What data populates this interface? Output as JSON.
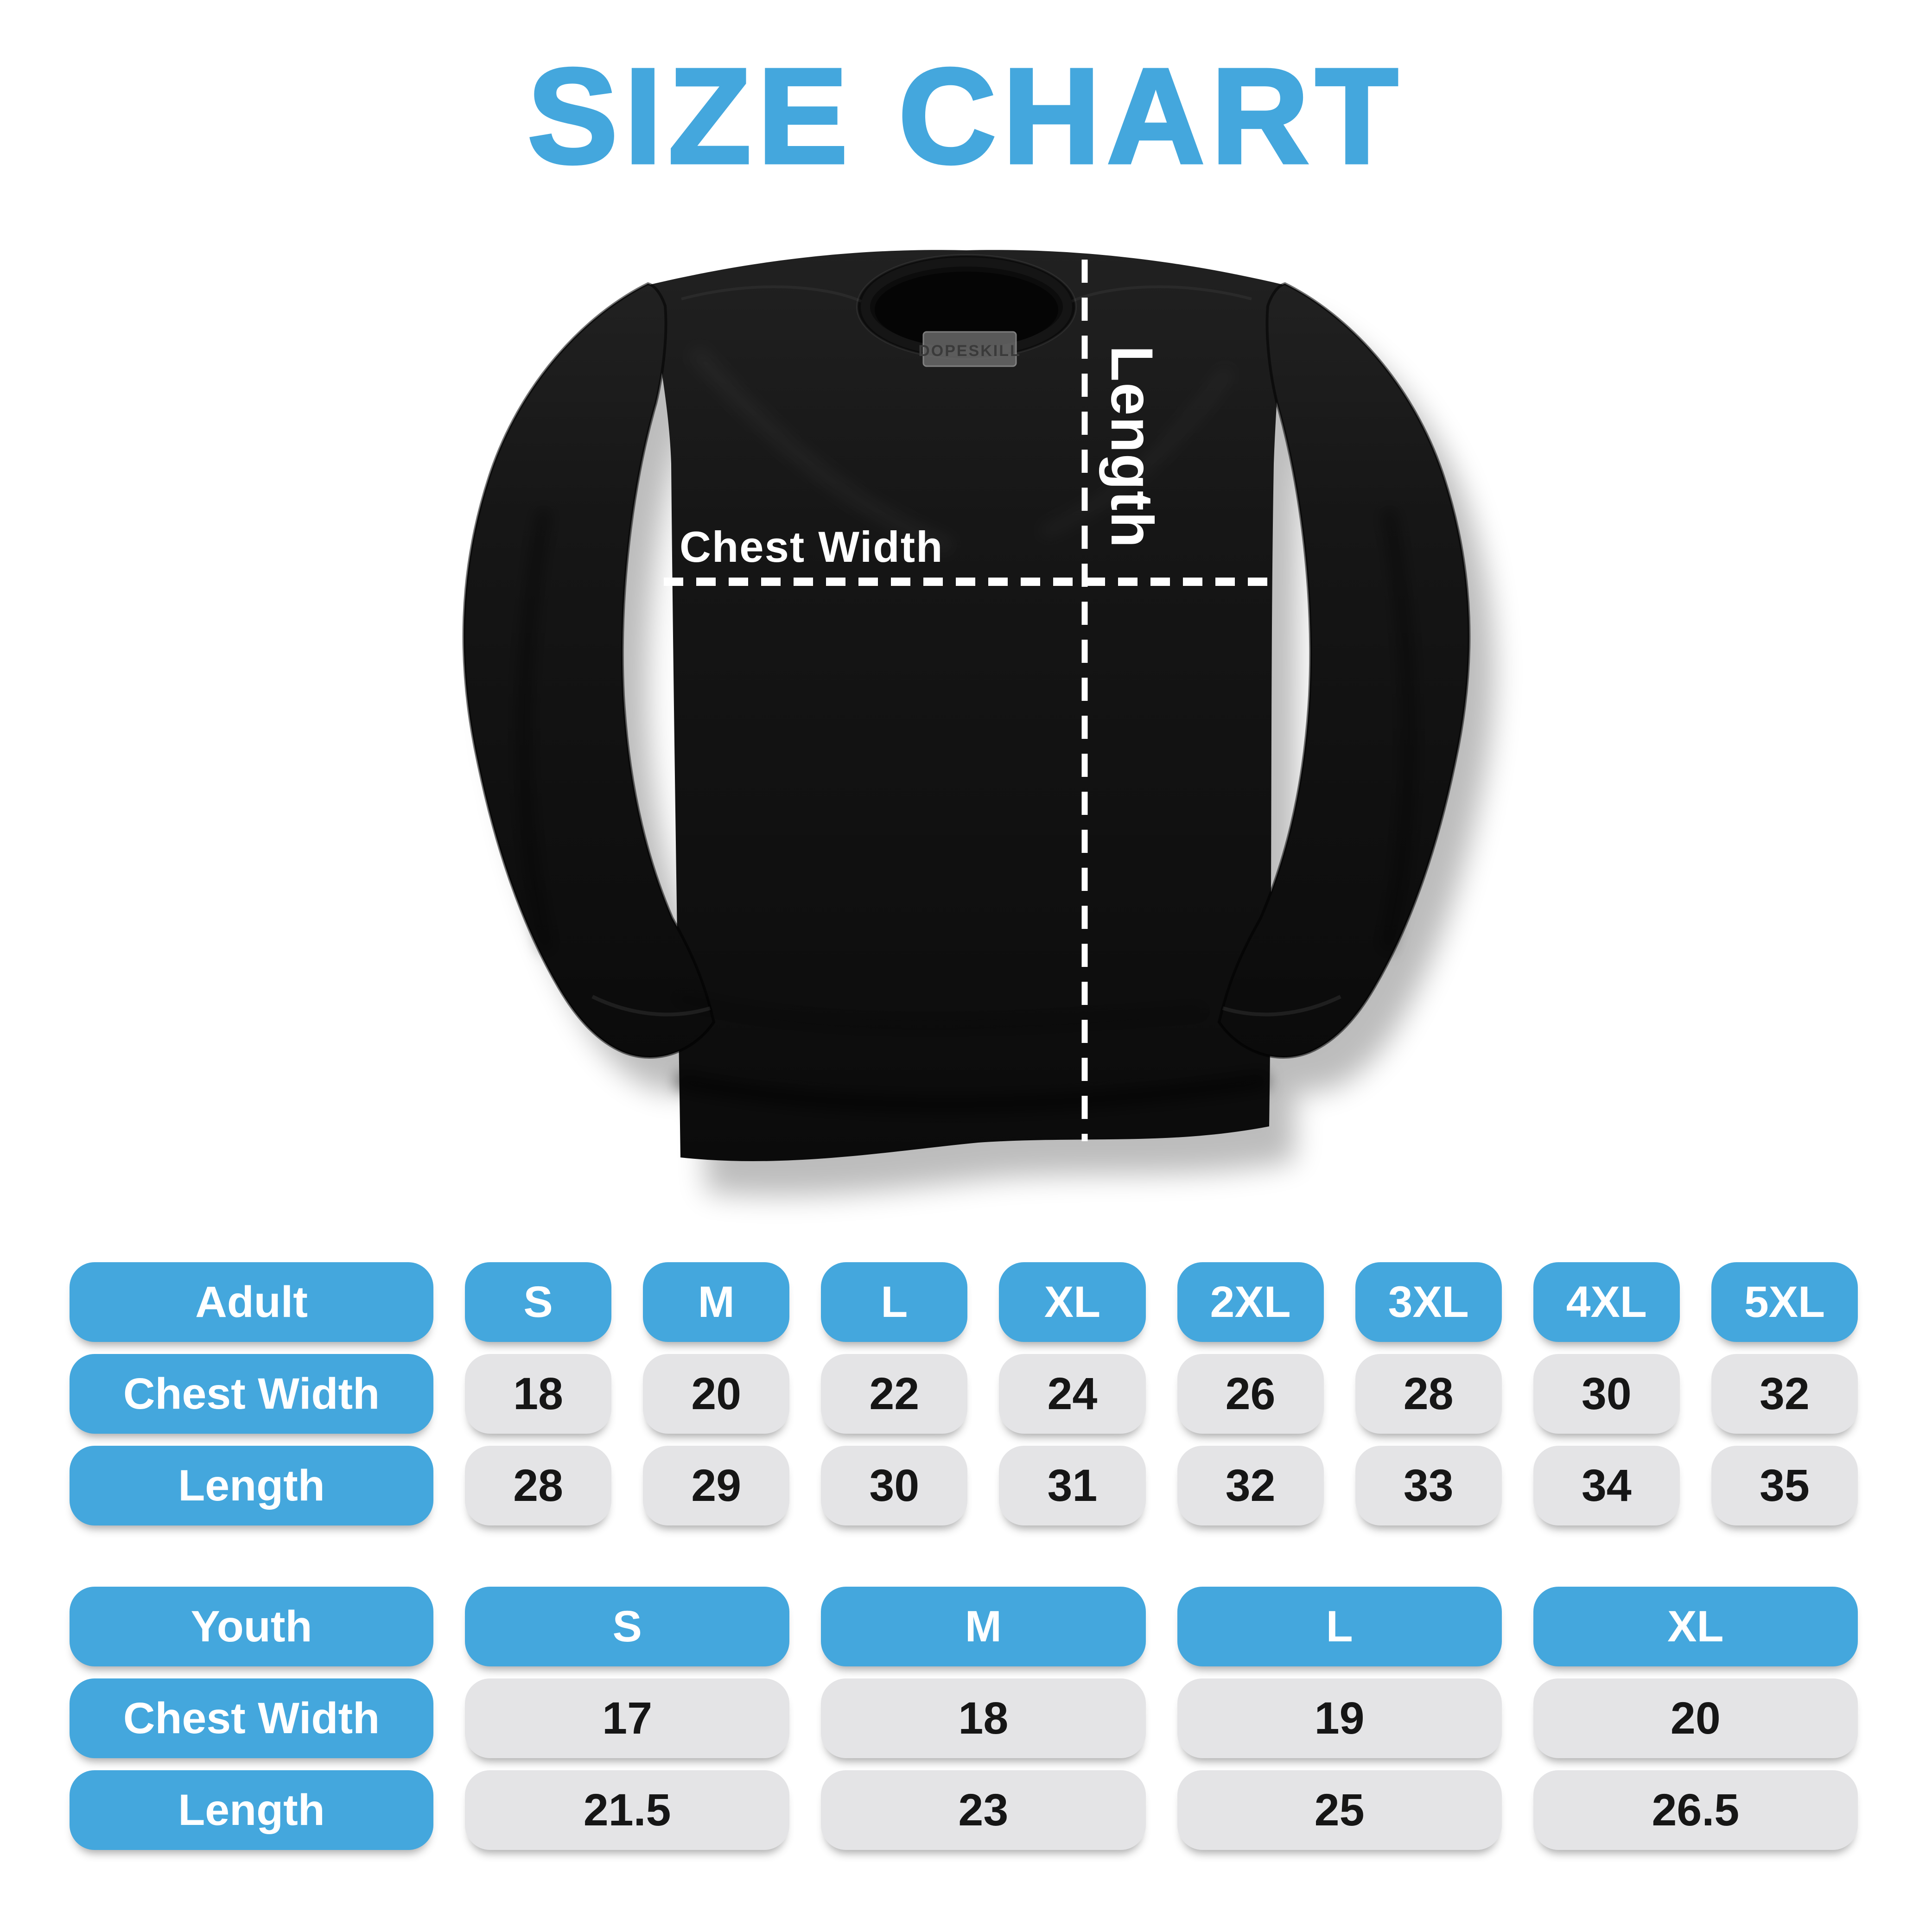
{
  "title": "SIZE CHART",
  "colors": {
    "accent_blue": "#44a7dd",
    "value_pill_gray": "#e4e4e6",
    "value_text": "#161616",
    "shirt_black": "#111111",
    "measure_line_white": "#ffffff"
  },
  "shirt": {
    "brand_tag": "DOPESKILL",
    "chest_width_label": "Chest Width",
    "length_label": "Length"
  },
  "chart_data": [
    {
      "type": "table",
      "name": "adult-sizes",
      "corner_label": "Adult",
      "columns": [
        "S",
        "M",
        "L",
        "XL",
        "2XL",
        "3XL",
        "4XL",
        "5XL"
      ],
      "rows": [
        {
          "label": "Chest Width",
          "values": [
            "18",
            "20",
            "22",
            "24",
            "26",
            "28",
            "30",
            "32"
          ]
        },
        {
          "label": "Length",
          "values": [
            "28",
            "29",
            "30",
            "31",
            "32",
            "33",
            "34",
            "35"
          ]
        }
      ]
    },
    {
      "type": "table",
      "name": "youth-sizes",
      "corner_label": "Youth",
      "columns": [
        "S",
        "M",
        "L",
        "XL"
      ],
      "rows": [
        {
          "label": "Chest Width",
          "values": [
            "17",
            "18",
            "19",
            "20"
          ]
        },
        {
          "label": "Length",
          "values": [
            "21.5",
            "23",
            "25",
            "26.5"
          ]
        }
      ]
    }
  ]
}
